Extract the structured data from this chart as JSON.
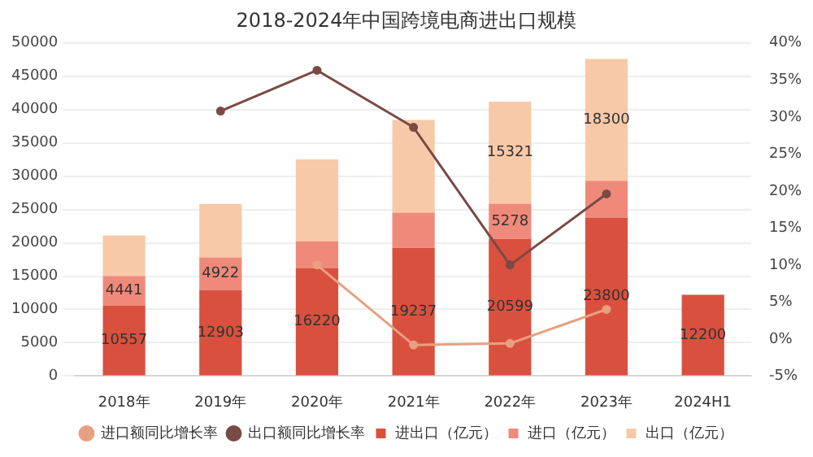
{
  "chart_data": {
    "type": "bar",
    "title": "2018-2024年中国跨境电商进出口规模",
    "stacked": true,
    "categories": [
      "2018年",
      "2019年",
      "2020年",
      "2021年",
      "2022年",
      "2023年",
      "2024H1"
    ],
    "series": [
      {
        "name": "进出口（亿元）",
        "color": "#d9503f",
        "values": [
          10557,
          12903,
          16220,
          19237,
          20599,
          23800,
          12200
        ],
        "value_labels": [
          "10557",
          "12903",
          "16220",
          "19237",
          "20599",
          "23800",
          "12200"
        ]
      },
      {
        "name": "进口（亿元）",
        "color": "#ef8a7a",
        "values": [
          4441,
          4922,
          4000,
          5300,
          5278,
          5500,
          null
        ],
        "value_labels": [
          "4441",
          "4922",
          null,
          null,
          "5278",
          null,
          null
        ]
      },
      {
        "name": "出口（亿元）",
        "color": "#f8c9a8",
        "values": [
          6100,
          8000,
          12300,
          13900,
          15321,
          18300,
          null
        ],
        "value_labels": [
          null,
          null,
          null,
          null,
          "15321",
          "18300",
          null
        ]
      },
      {
        "name": "进口额同比增长率",
        "type": "line",
        "axis": "y2",
        "color": "#e8a080",
        "values": [
          null,
          null,
          10,
          -0.8,
          -0.6,
          4,
          null
        ]
      },
      {
        "name": "出口额同比增长率",
        "type": "line",
        "axis": "y2",
        "color": "#7a4a45",
        "values": [
          null,
          30.8,
          36.3,
          28.6,
          10,
          19.6,
          null
        ]
      }
    ],
    "ylim": [
      0,
      50000
    ],
    "yticks": [
      0,
      5000,
      10000,
      15000,
      20000,
      25000,
      30000,
      35000,
      40000,
      45000,
      50000
    ],
    "y2lim": [
      -5,
      40
    ],
    "y2ticks": [
      {
        "value": -5,
        "label": "-5%"
      },
      {
        "value": 0,
        "label": "0%"
      },
      {
        "value": 5,
        "label": "5%"
      },
      {
        "value": 10,
        "label": "10%"
      },
      {
        "value": 15,
        "label": "15%"
      },
      {
        "value": 20,
        "label": "20%"
      },
      {
        "value": 25,
        "label": "25%"
      },
      {
        "value": 30,
        "label": "30%"
      },
      {
        "value": 35,
        "label": "35%"
      },
      {
        "value": 40,
        "label": "40%"
      }
    ],
    "grid": "y",
    "legend": "bottom",
    "marker": "circle",
    "line_style": "solid"
  }
}
